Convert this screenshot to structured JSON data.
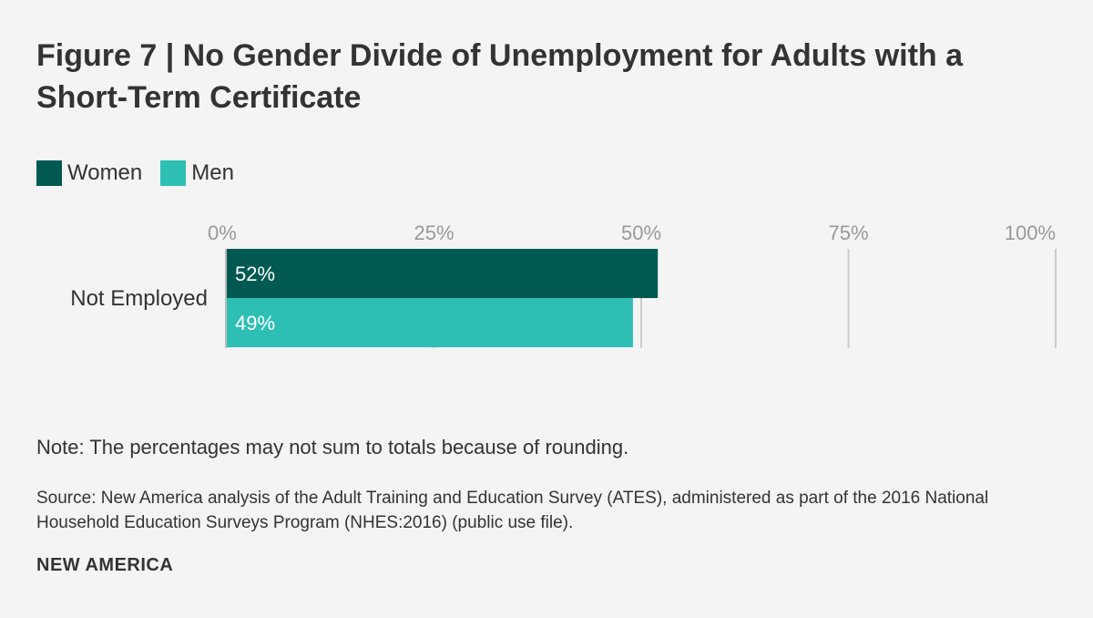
{
  "title": "Figure 7 | No Gender Divide of Unemployment for Adults with a Short-Term Certificate",
  "note": "Note: The percentages may not sum to totals because of rounding.",
  "source": "Source: New America analysis of the Adult Training and Education Survey (ATES), administered as part of the 2016 National Household Education Surveys Program (NHES:2016) (public use file).",
  "brand": "NEW AMERICA",
  "colors": {
    "background": "#f4f4f4",
    "text": "#333333",
    "tick_text": "#999999",
    "grid": "#cccccc",
    "women": "#005a52",
    "men": "#2ebfb4"
  },
  "chart_data": {
    "type": "bar",
    "orientation": "horizontal",
    "categories": [
      "Not Employed"
    ],
    "series": [
      {
        "name": "Women",
        "values": [
          52
        ],
        "labels": [
          "52%"
        ],
        "color": "#005a52"
      },
      {
        "name": "Men",
        "values": [
          49
        ],
        "labels": [
          "49%"
        ],
        "color": "#2ebfb4"
      }
    ],
    "xlim": [
      0,
      100
    ],
    "xticks": [
      0,
      25,
      50,
      75,
      100
    ],
    "xtick_labels": [
      "0%",
      "25%",
      "50%",
      "75%",
      "100%"
    ],
    "grid": true,
    "legend": "top-left"
  }
}
